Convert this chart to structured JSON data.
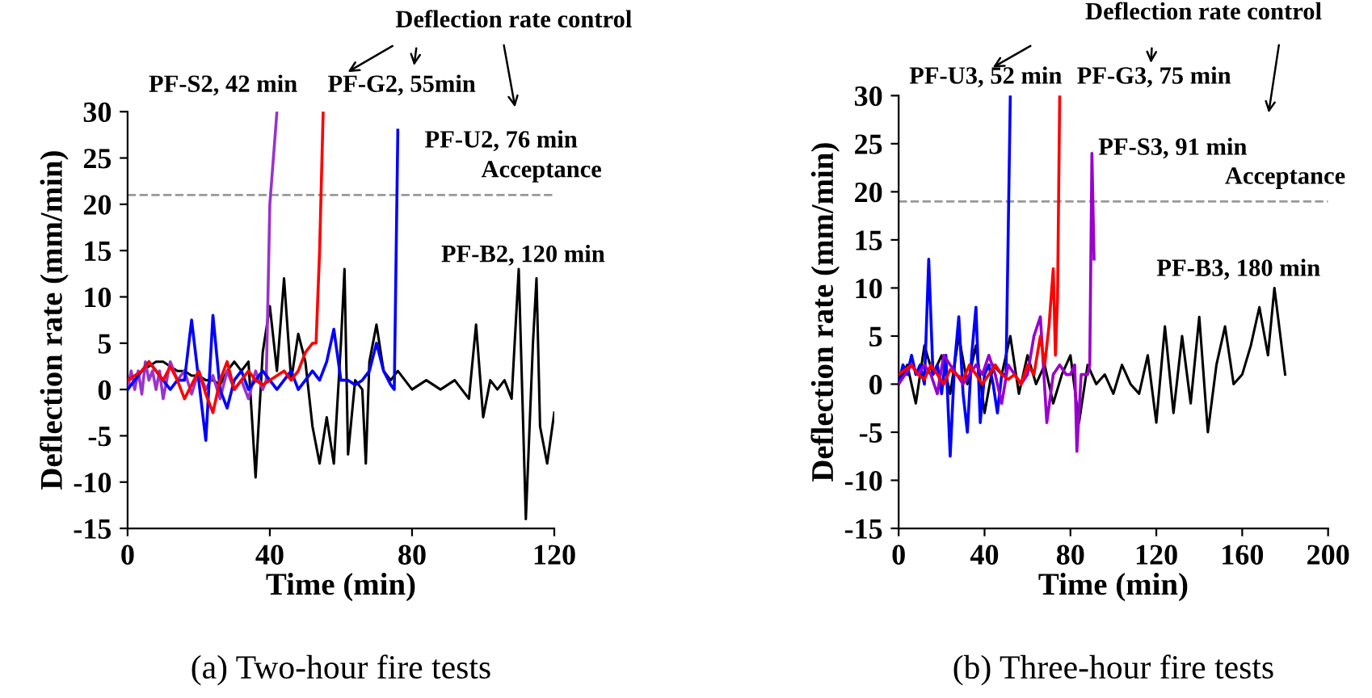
{
  "chart_data": [
    {
      "type": "line",
      "title": "(a) Two-hour fire tests",
      "xlabel": "Time (min)",
      "ylabel": "Deflection rate (mm/min)",
      "xlim": [
        0,
        120
      ],
      "xticks": [
        0,
        40,
        80,
        120
      ],
      "ylim": [
        -15,
        30
      ],
      "yticks": [
        -15,
        -10,
        -5,
        0,
        5,
        10,
        15,
        20,
        25,
        30
      ],
      "grid": false,
      "legend": false,
      "ref_lines": [
        {
          "axis": "y",
          "value": 21,
          "label": "Acceptance",
          "color": "#999999",
          "line_style": "dashed"
        }
      ],
      "annotations": [
        "Deflection rate control",
        {
          "text": "PF-S2, 42 min",
          "x": 42,
          "y": 30
        },
        {
          "text": "PF-G2, 55min",
          "x": 55,
          "y": 30
        },
        {
          "text": "PF-U2, 76 min",
          "x": 76,
          "y": 28
        },
        {
          "text": "PF-B2, 120 min",
          "x": 115,
          "y": 12
        }
      ],
      "series": [
        {
          "color": "#000000",
          "x": [
            0,
            2,
            4,
            6,
            8,
            10,
            12,
            14,
            16,
            18,
            20,
            22,
            24,
            26,
            28,
            30,
            32,
            34,
            36,
            38,
            40,
            42,
            44,
            46,
            48,
            50,
            52,
            54,
            56,
            58,
            60,
            61,
            62,
            64,
            66,
            67,
            68,
            70,
            72,
            74,
            76,
            78,
            80,
            84,
            88,
            92,
            96,
            98,
            100,
            102,
            104,
            106,
            108,
            110,
            112,
            114,
            115,
            116,
            118,
            120
          ],
          "values": [
            0,
            1,
            2,
            2.5,
            3,
            3,
            2.5,
            2,
            2,
            1.5,
            1.5,
            1,
            1,
            0.5,
            2,
            3,
            2,
            3,
            -9.5,
            4,
            9,
            2,
            12,
            1,
            6,
            3,
            -4,
            -8,
            -3,
            -8,
            5,
            13,
            -7,
            1,
            0,
            -8,
            3,
            7,
            2,
            1,
            2,
            1,
            0,
            1,
            0,
            1,
            -1,
            7,
            -3,
            1,
            0,
            1,
            -1,
            13,
            -14,
            5,
            12,
            -4,
            -8,
            -2.5
          ]
        },
        {
          "color": "#9933cc",
          "x": [
            0,
            1,
            2,
            3,
            4,
            5,
            6,
            7,
            8,
            9,
            10,
            12,
            14,
            16,
            18,
            20,
            22,
            24,
            26,
            28,
            30,
            32,
            34,
            36,
            38,
            39,
            40,
            41,
            42
          ],
          "values": [
            0,
            2,
            0,
            2,
            -0.5,
            3,
            1,
            2,
            0,
            2,
            -1,
            3,
            1,
            2,
            -0.5,
            2,
            0,
            1.5,
            -1,
            2,
            0,
            1,
            -1,
            2,
            0,
            1,
            20,
            25,
            30
          ]
        },
        {
          "color": "#ff0000",
          "x": [
            0,
            2,
            4,
            6,
            8,
            10,
            12,
            14,
            16,
            18,
            20,
            22,
            24,
            26,
            28,
            30,
            32,
            34,
            36,
            38,
            40,
            42,
            44,
            46,
            48,
            50,
            52,
            53,
            54,
            55
          ],
          "values": [
            1,
            1.5,
            2,
            3,
            2,
            1,
            2.5,
            1,
            -1,
            0.5,
            2,
            -0.5,
            -2.5,
            1,
            3,
            0,
            1,
            2,
            1,
            0.5,
            1,
            1.5,
            2,
            1,
            2,
            4,
            5,
            5,
            15,
            30
          ]
        },
        {
          "color": "#0000ff",
          "x": [
            0,
            2,
            4,
            6,
            8,
            10,
            12,
            14,
            16,
            18,
            20,
            22,
            24,
            26,
            28,
            30,
            32,
            34,
            36,
            38,
            40,
            42,
            44,
            46,
            48,
            50,
            52,
            54,
            56,
            58,
            60,
            62,
            64,
            66,
            68,
            70,
            72,
            74,
            75,
            76
          ],
          "values": [
            0,
            1,
            2,
            3,
            2,
            1,
            0,
            1,
            1,
            7.5,
            1,
            -5.5,
            8,
            0,
            -2,
            1,
            2,
            0,
            1,
            2,
            1,
            0,
            1,
            2,
            0,
            1,
            2,
            1,
            3,
            6.5,
            1,
            1,
            0.5,
            1,
            2,
            5,
            2,
            0.5,
            0,
            28
          ]
        }
      ]
    },
    {
      "type": "line",
      "title": "(b) Three-hour fire tests",
      "xlabel": "Time (min)",
      "ylabel": "Deflection rate (mm/min)",
      "xlim": [
        0,
        200
      ],
      "xticks": [
        0,
        40,
        80,
        120,
        160,
        200
      ],
      "ylim": [
        -15,
        30
      ],
      "yticks": [
        -15,
        -10,
        -5,
        0,
        5,
        10,
        15,
        20,
        25,
        30
      ],
      "grid": false,
      "legend": false,
      "ref_lines": [
        {
          "axis": "y",
          "value": 19,
          "label": "Acceptance",
          "color": "#999999",
          "line_style": "dashed"
        }
      ],
      "annotations": [
        "Deflection rate control",
        {
          "text": "PF-U3, 52 min",
          "x": 52,
          "y": 30
        },
        {
          "text": "PF-G3, 75 min",
          "x": 75,
          "y": 30
        },
        {
          "text": "PF-S3, 91 min",
          "x": 90,
          "y": 24
        },
        {
          "text": "PF-B3, 180 min",
          "x": 175,
          "y": 10
        }
      ],
      "series": [
        {
          "color": "#000000",
          "x": [
            0,
            4,
            8,
            12,
            16,
            20,
            24,
            28,
            32,
            36,
            40,
            44,
            48,
            52,
            56,
            60,
            64,
            68,
            72,
            76,
            80,
            84,
            88,
            92,
            96,
            100,
            104,
            108,
            112,
            116,
            120,
            124,
            128,
            132,
            136,
            140,
            144,
            148,
            152,
            156,
            160,
            164,
            168,
            172,
            175,
            180
          ],
          "values": [
            0,
            2,
            -2,
            4,
            1,
            3,
            -1,
            5,
            0,
            4,
            -3,
            2,
            1,
            5,
            -1,
            3,
            0,
            2,
            -2,
            1,
            3,
            -4,
            2,
            0,
            1,
            -1,
            2,
            0,
            -1,
            3,
            -4,
            6,
            -3,
            5,
            -2,
            7,
            -5,
            2,
            6,
            0,
            1,
            4,
            8,
            3,
            10,
            1
          ]
        },
        {
          "color": "#0000ff",
          "x": [
            0,
            2,
            4,
            6,
            8,
            10,
            12,
            14,
            16,
            18,
            20,
            22,
            24,
            26,
            28,
            30,
            32,
            34,
            36,
            38,
            40,
            42,
            44,
            46,
            48,
            50,
            52
          ],
          "values": [
            0,
            2,
            1,
            3,
            1,
            2,
            0,
            13,
            1,
            2,
            -1,
            3,
            -7.5,
            2,
            7,
            -1,
            -5,
            3,
            8,
            -4,
            1,
            2,
            0,
            -3,
            1,
            1,
            30
          ]
        },
        {
          "color": "#ff0000",
          "x": [
            0,
            3,
            6,
            9,
            12,
            15,
            18,
            21,
            24,
            27,
            30,
            33,
            36,
            39,
            42,
            45,
            48,
            51,
            54,
            57,
            60,
            63,
            66,
            68,
            70,
            72,
            73,
            74,
            75
          ],
          "values": [
            1,
            1.5,
            2,
            1,
            0.5,
            2,
            1,
            0,
            1.5,
            1,
            0.5,
            2,
            1,
            0,
            1,
            2,
            1,
            0.5,
            1,
            0,
            2,
            1,
            5,
            2,
            6,
            12,
            3,
            9,
            30
          ]
        },
        {
          "color": "#9900cc",
          "x": [
            0,
            3,
            6,
            9,
            12,
            15,
            18,
            21,
            24,
            27,
            30,
            33,
            36,
            39,
            42,
            45,
            48,
            51,
            54,
            57,
            60,
            63,
            66,
            69,
            72,
            75,
            78,
            80,
            82,
            83,
            85,
            88,
            89,
            90,
            91
          ],
          "values": [
            0,
            1,
            2,
            1,
            2,
            1,
            -1,
            3,
            2,
            1,
            0,
            1,
            2,
            1,
            3,
            1,
            -2,
            2,
            1,
            0,
            1,
            5,
            7,
            -4,
            1,
            2,
            1,
            1,
            2,
            -7,
            1,
            1,
            2,
            24,
            13
          ]
        }
      ]
    }
  ]
}
